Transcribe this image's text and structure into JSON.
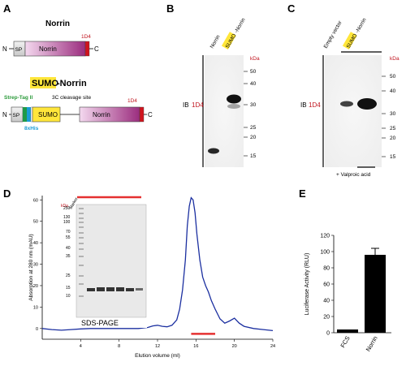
{
  "panels": {
    "A": {
      "letter": "A",
      "construct1": {
        "title": "Norrin",
        "n": "N",
        "c": "C",
        "sp": "SP",
        "body": "Norrin",
        "tag": "1D4"
      },
      "construct2": {
        "title_sumo": "SUMO",
        "title_rest": "-Norrin",
        "n": "N",
        "c": "C",
        "sp": "SP",
        "sumo": "SUMO",
        "body": "Norrin",
        "tag": "1D4",
        "strep": "Strep-Tag II",
        "cleavage": "3C cleavage site",
        "his": "8xHis"
      }
    },
    "B": {
      "letter": "B",
      "lane1": "Norrin",
      "lane2_sumo": "SUMO",
      "lane2_rest": "-Norrin",
      "ib": "IB",
      "ib_ab": "1D4",
      "kda_label": "kDa",
      "markers": [
        "50",
        "40",
        "30",
        "25",
        "20",
        "15"
      ]
    },
    "C": {
      "letter": "C",
      "lane1": "Empty vector",
      "lane2_sumo": "SUMO",
      "lane2_rest": "-Norrin",
      "ib": "IB",
      "ib_ab": "1D4",
      "kda_label": "kDa",
      "markers": [
        "50",
        "40",
        "30",
        "25",
        "20",
        "15"
      ],
      "treatment": "+ Valproic acid"
    },
    "D": {
      "letter": "D",
      "inset_caption": "SDS-PAGE",
      "inset_kda": "kDa",
      "inset_marker": "Marker",
      "inset_ladder": [
        "250",
        "130",
        "100",
        "70",
        "55",
        "40",
        "35",
        "25",
        "15",
        "10"
      ]
    },
    "E": {
      "letter": "E",
      "categories_label": [
        "FCS",
        "Norrin"
      ]
    }
  },
  "chart_data": [
    {
      "panel": "D",
      "type": "line",
      "title": "",
      "xlabel": "Elution volume (ml)",
      "ylabel": "Absorption at 280 nm (mAU)",
      "xlim": [
        0,
        24
      ],
      "ylim": [
        -5,
        62
      ],
      "xticks": [
        4,
        8,
        12,
        16,
        20,
        24
      ],
      "yticks": [
        0,
        10,
        20,
        30,
        40,
        50,
        60
      ],
      "series": [
        {
          "x": [
            0,
            1,
            2,
            3,
            4,
            5,
            6,
            7,
            8,
            9,
            10,
            11,
            11.5,
            12,
            12.5,
            13,
            13.5,
            14,
            14.3,
            14.6,
            14.9,
            15.1,
            15.3,
            15.5,
            15.7,
            15.9,
            16.1,
            16.4,
            16.7,
            17,
            17.3,
            17.6,
            18,
            18.5,
            19,
            19.5,
            20,
            20.5,
            21,
            22,
            23,
            24
          ],
          "y": [
            0,
            -0.5,
            -0.8,
            -0.5,
            -0.2,
            0,
            0,
            0,
            0,
            0,
            0,
            0.5,
            1.2,
            1.5,
            1,
            0.8,
            1.5,
            4,
            9,
            18,
            32,
            48,
            57,
            61,
            60,
            54,
            44,
            32,
            24,
            20,
            17,
            13,
            9,
            4.5,
            2.5,
            3.5,
            4.8,
            2.5,
            1,
            0,
            -0.5,
            -1
          ]
        }
      ],
      "fraction_bar": [
        15.5,
        18
      ]
    },
    {
      "panel": "E",
      "type": "bar",
      "title": "",
      "xlabel": "",
      "ylabel": "Luciferase Activity (RLU)",
      "categories": [
        "FCS",
        "Norrin"
      ],
      "values": [
        4,
        96
      ],
      "errors": [
        0,
        8
      ],
      "ylim": [
        0,
        120
      ],
      "yticks": [
        0,
        20,
        40,
        60,
        80,
        100,
        120
      ]
    }
  ]
}
